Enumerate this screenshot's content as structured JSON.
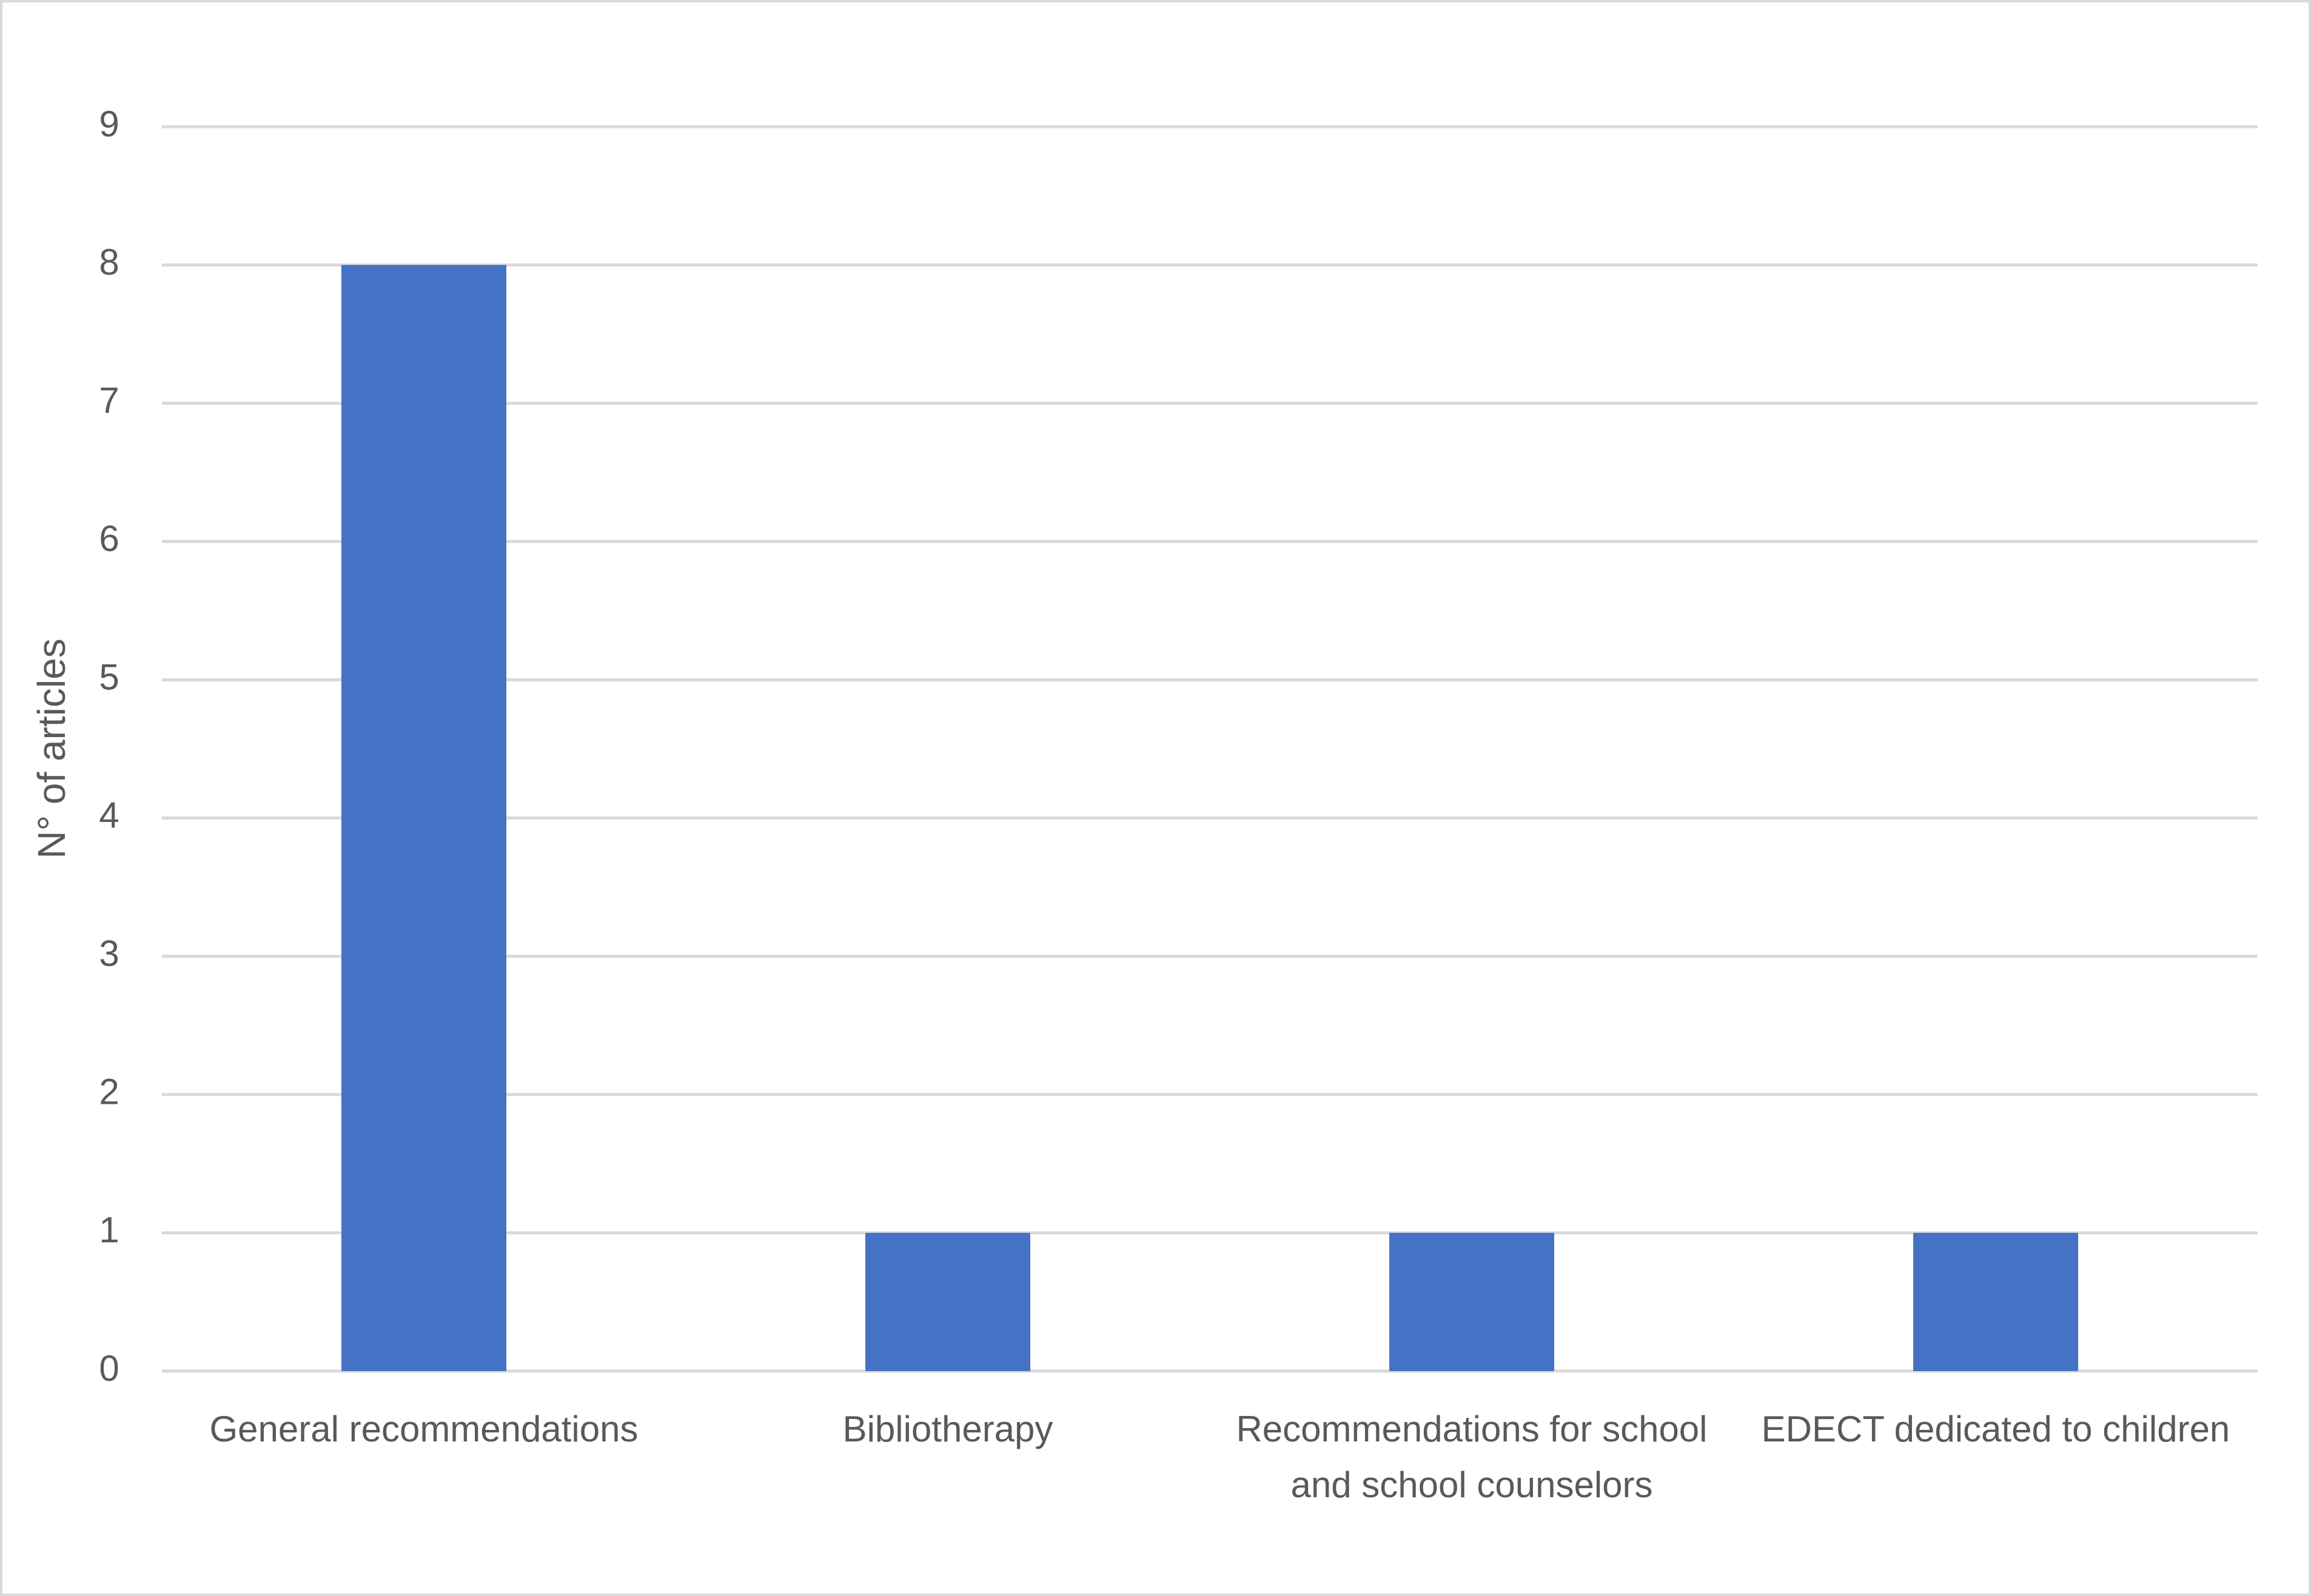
{
  "chart_data": {
    "type": "bar",
    "y_label": "N° of articles",
    "categories": [
      "General recommendations",
      "Bibliotherapy",
      "Recommendations for school and school counselors",
      "EDECT dedicated to children"
    ],
    "values": [
      8,
      1,
      1,
      1
    ],
    "color": "#4472c4",
    "ylim": [
      0,
      9
    ],
    "yticks": [
      0,
      1,
      2,
      3,
      4,
      5,
      6,
      7,
      8,
      9
    ],
    "grid": true
  }
}
